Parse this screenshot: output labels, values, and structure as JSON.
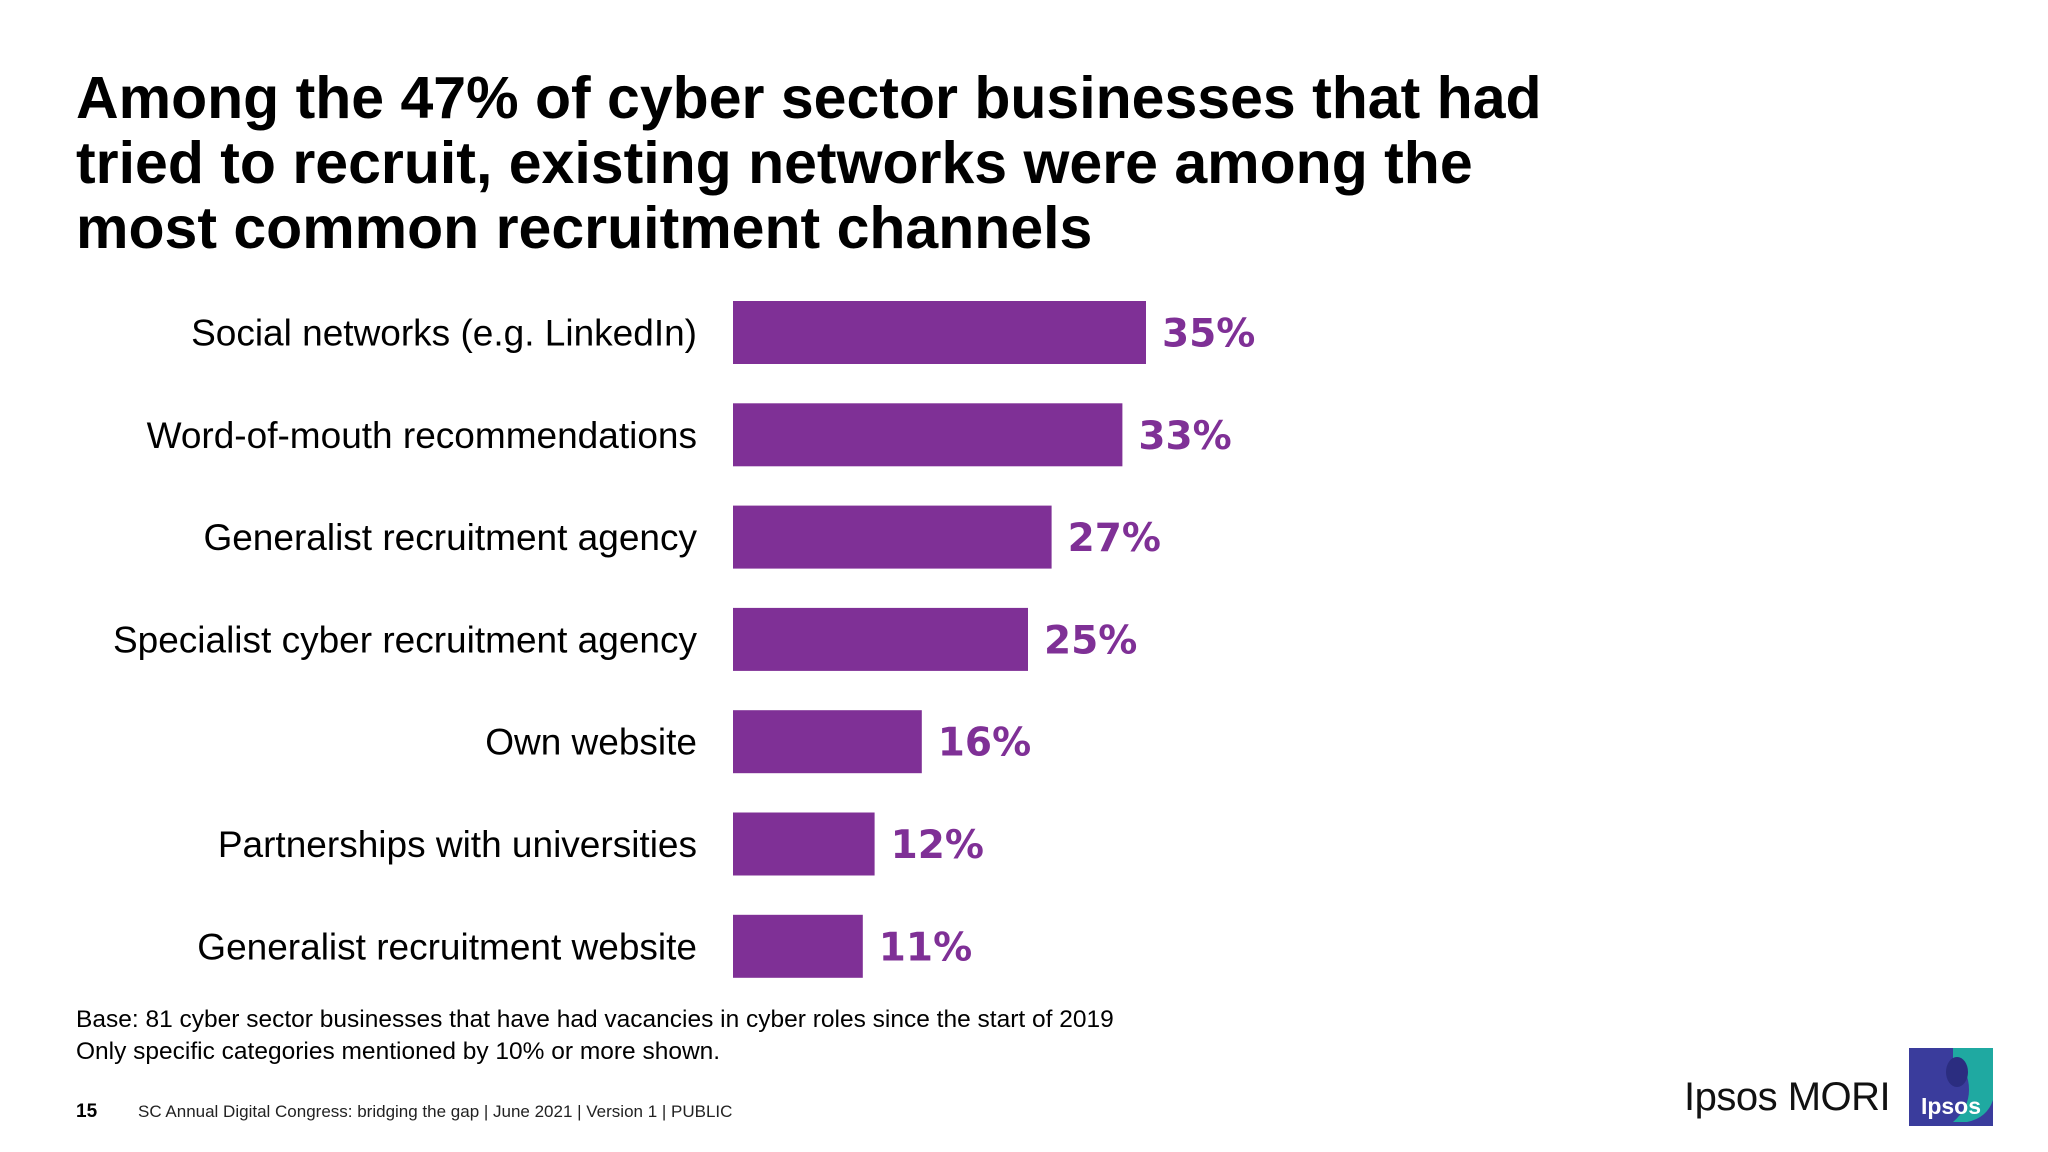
{
  "title_lines": [
    "Among the 47% of cyber sector businesses that had",
    "tried to recruit, existing networks were among the",
    "most common recruitment channels"
  ],
  "chart_data": {
    "type": "bar",
    "orientation": "horizontal",
    "categories": [
      "Social networks (e.g. LinkedIn)",
      "Word-of-mouth recommendations",
      "Generalist recruitment agency",
      "Specialist cyber recruitment agency",
      "Own website",
      "Partnerships with universities",
      "Generalist recruitment website"
    ],
    "values": [
      35,
      33,
      27,
      25,
      16,
      12,
      11
    ],
    "value_labels": [
      "35%",
      "33%",
      "27%",
      "25%",
      "16%",
      "12%",
      "11%"
    ],
    "title": "",
    "xlabel": "",
    "ylabel": "",
    "xlim": [
      0,
      100
    ],
    "grid": false,
    "legend": "none",
    "bar_color": "#7f3096",
    "label_color": "#7f3096"
  },
  "base_note": [
    "Base: 81 cyber sector businesses that have had vacancies in cyber roles since the start of 2019",
    "Only specific categories mentioned by 10% or more shown."
  ],
  "footer": {
    "page_number": "15",
    "text": "SC Annual Digital Congress: bridging the gap | June 2021 | Version 1 | PUBLIC"
  },
  "brand": {
    "name": "Ipsos MORI",
    "logo_text": "Ipsos",
    "logo_colors": {
      "primary": "#3a3c9c",
      "accent": "#1fa9a1"
    }
  }
}
